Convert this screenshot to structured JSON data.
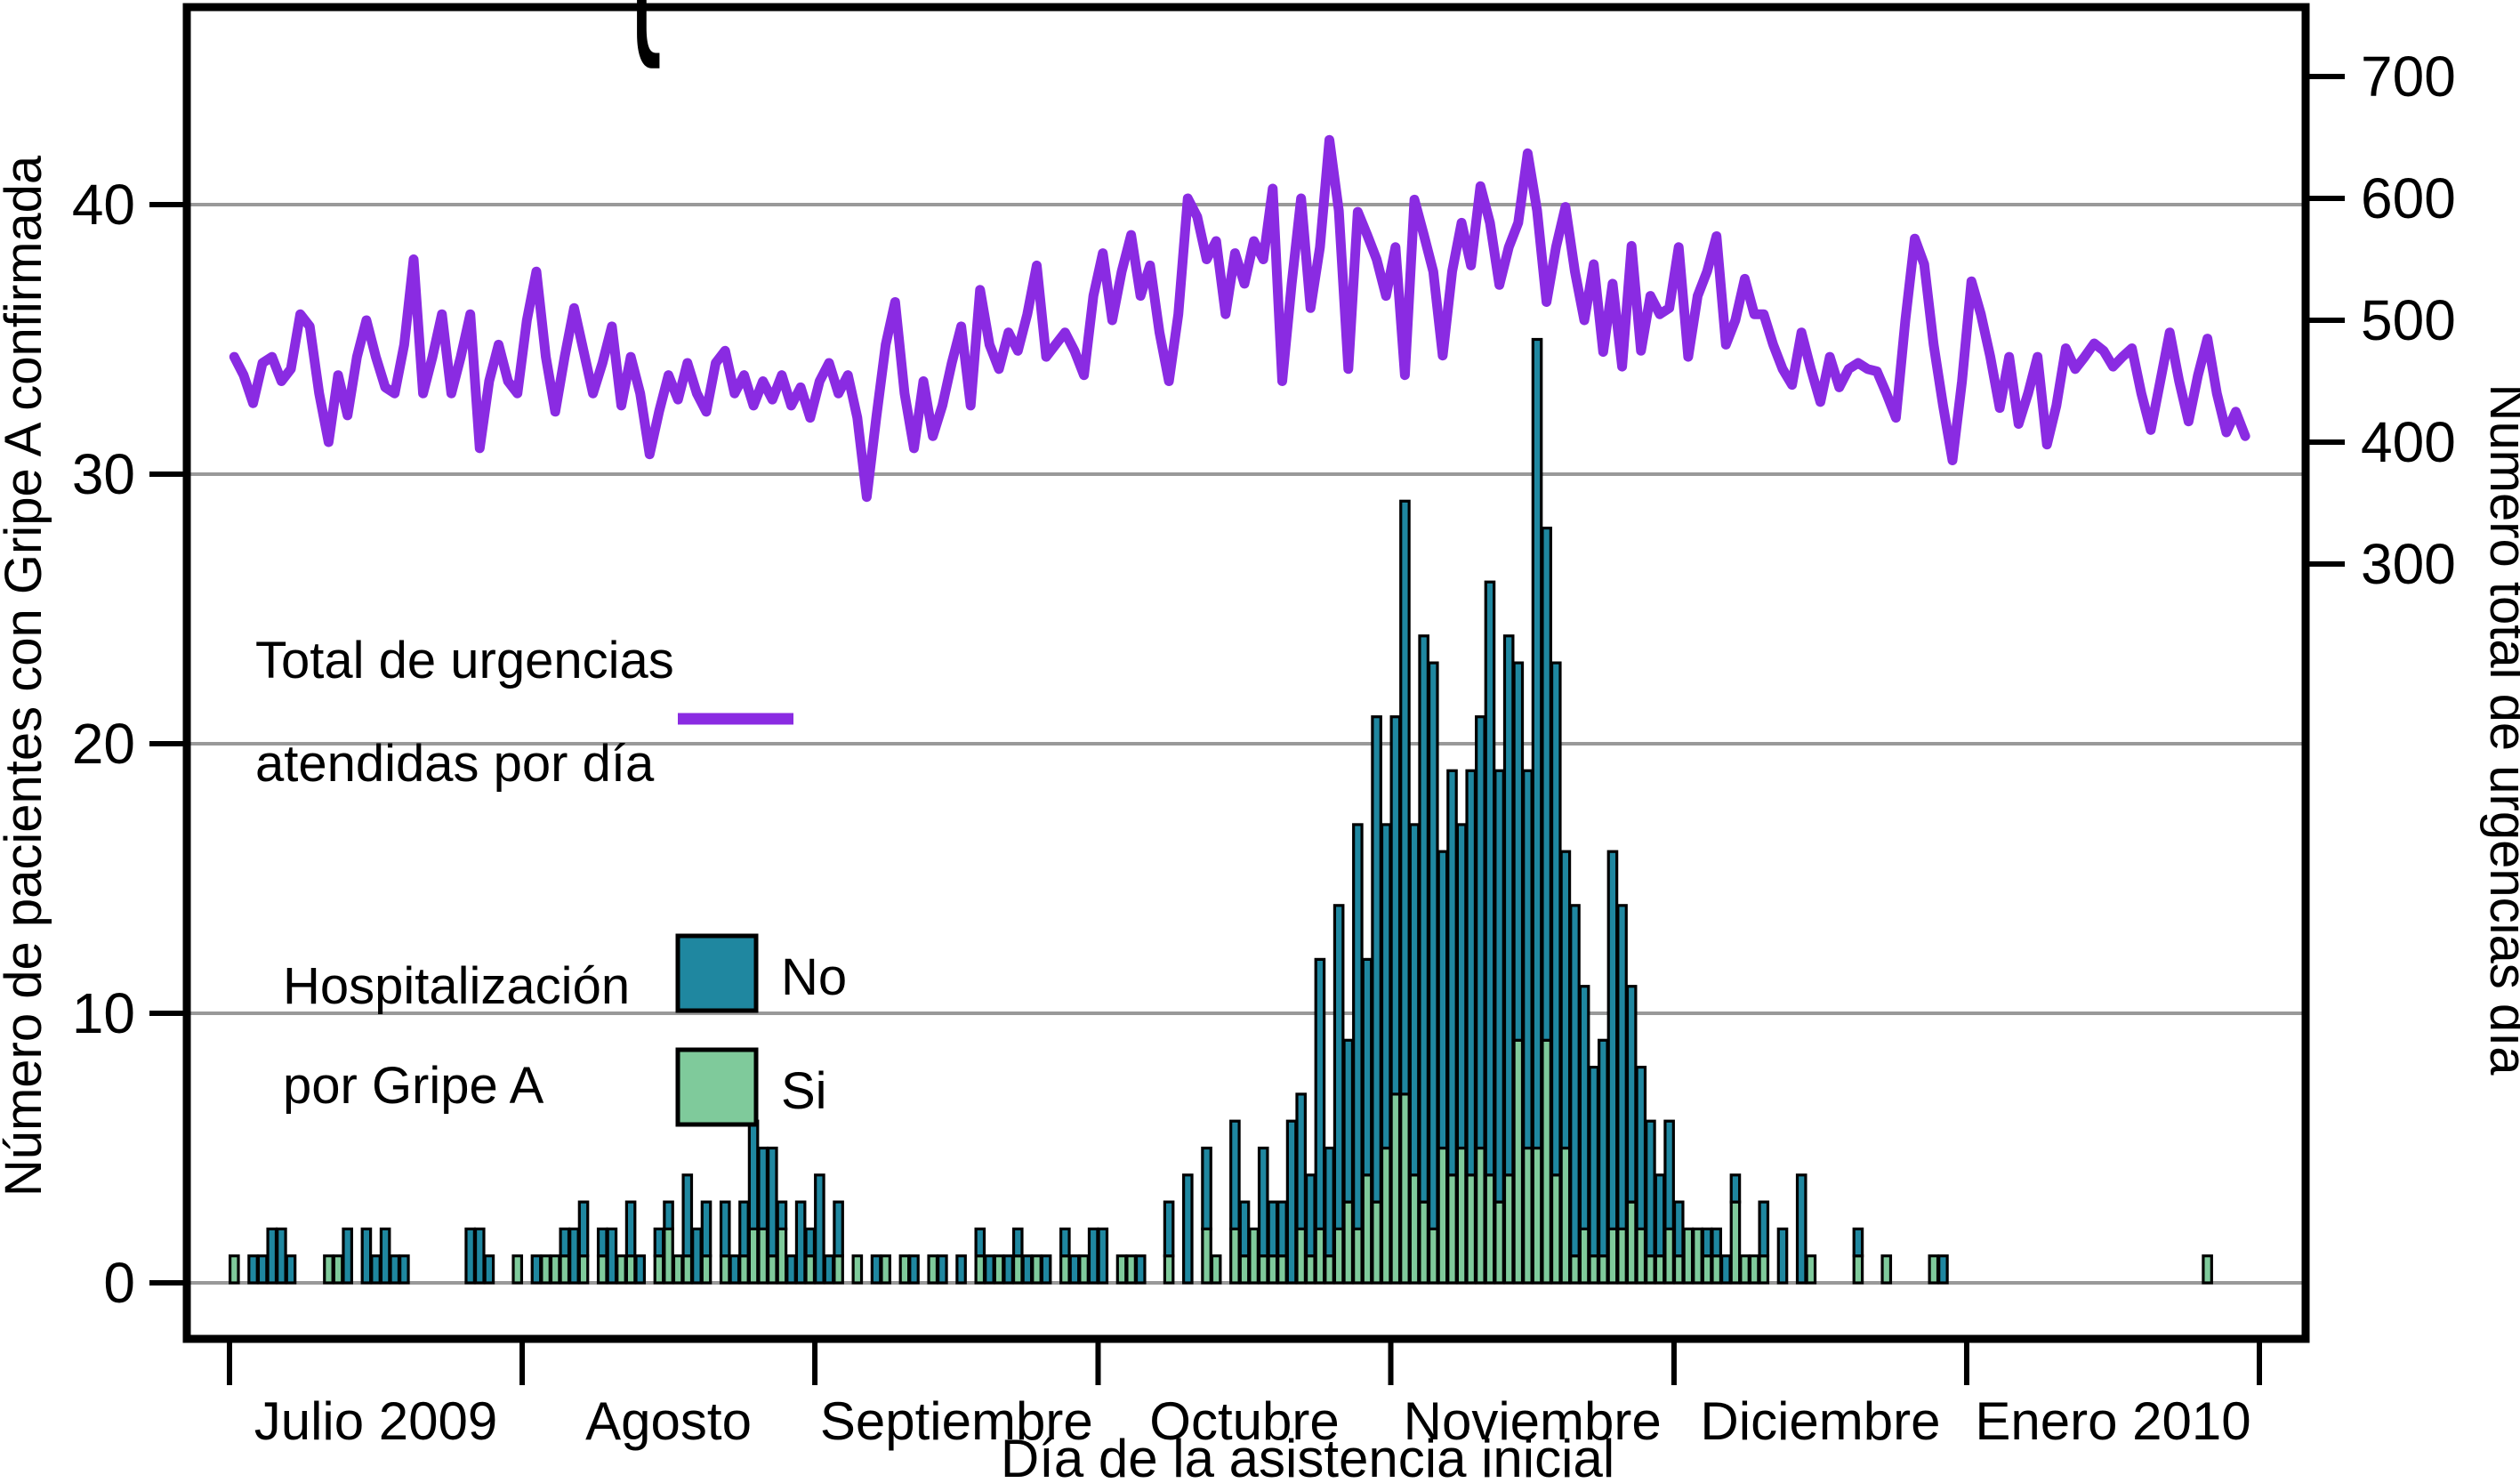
{
  "chart_data": {
    "type": "composite-bar-line",
    "x_axis": {
      "label": "Día de la asistencia inicial",
      "months": [
        {
          "label": "Julio 2009",
          "days": 31
        },
        {
          "label": "Agosto",
          "days": 31
        },
        {
          "label": "Septiembre",
          "days": 30
        },
        {
          "label": "Octubre",
          "days": 31
        },
        {
          "label": "Noviembre",
          "days": 30
        },
        {
          "label": "Diciembre",
          "days": 31
        },
        {
          "label": "Enero 2010",
          "days": 31
        }
      ]
    },
    "y_left": {
      "label": "Número de pacientes con Gripe A confirmada",
      "ticks": [
        0,
        10,
        20,
        30,
        40
      ],
      "range": [
        0,
        48
      ]
    },
    "y_right": {
      "label": "Número total de urgencias día",
      "ticks": [
        300,
        400,
        500,
        600,
        700
      ]
    },
    "legend": {
      "line_label_1": "Total de urgencias",
      "line_label_2": "atendidas por día",
      "bars_label_1": "Hospitalización",
      "bars_label_2": "por Gripe A",
      "no_label": "No",
      "si_label": "Si",
      "brace": "{"
    },
    "colors": {
      "no_bar": "#1f87a0",
      "si_bar": "#7fca9b",
      "line": "#8a2be2",
      "grid": "#999999",
      "axis": "#000000",
      "bar_outline": "#000000"
    },
    "series": {
      "si": [
        1,
        0,
        0,
        0,
        0,
        0,
        0,
        0,
        0,
        0,
        1,
        1,
        0,
        0,
        0,
        0,
        0,
        0,
        0,
        0,
        0,
        0,
        0,
        0,
        0,
        0,
        0,
        0,
        0,
        0,
        1,
        0,
        0,
        1,
        1,
        1,
        0,
        1,
        0,
        1,
        0,
        1,
        1,
        0,
        0,
        1,
        2,
        1,
        1,
        0,
        1,
        0,
        1,
        0,
        1,
        2,
        2,
        1,
        2,
        0,
        0,
        1,
        0,
        0,
        1,
        0,
        1,
        0,
        0,
        1,
        0,
        1,
        0,
        0,
        1,
        0,
        0,
        0,
        0,
        1,
        0,
        1,
        0,
        1,
        0,
        1,
        0,
        0,
        1,
        0,
        1,
        0,
        0,
        0,
        1,
        1,
        0,
        0,
        0,
        1,
        0,
        0,
        0,
        2,
        1,
        0,
        2,
        1,
        2,
        1,
        1,
        1,
        0,
        2,
        1,
        2,
        1,
        2,
        3,
        2,
        4,
        3,
        5,
        7,
        7,
        4,
        3,
        2,
        5,
        4,
        5,
        4,
        5,
        4,
        3,
        4,
        9,
        5,
        5,
        9,
        4,
        5,
        1,
        2,
        1,
        1,
        2,
        2,
        3,
        2,
        1,
        1,
        2,
        1,
        2,
        2,
        1,
        1,
        0,
        3,
        1,
        1,
        1,
        0,
        0,
        0,
        0,
        1,
        0,
        0,
        0,
        0,
        1,
        0,
        0,
        1,
        0,
        0,
        0,
        0,
        1,
        0,
        0,
        0,
        0,
        0,
        0,
        0,
        0,
        0,
        0,
        0,
        0,
        0,
        0,
        0,
        0,
        0,
        0,
        0,
        0,
        0,
        0,
        0,
        0,
        0,
        0,
        0,
        0,
        1,
        0,
        0,
        0,
        0
      ],
      "no": [
        0,
        0,
        1,
        1,
        2,
        2,
        1,
        0,
        0,
        0,
        0,
        0,
        2,
        0,
        2,
        1,
        2,
        1,
        1,
        0,
        0,
        0,
        0,
        0,
        0,
        2,
        2,
        1,
        0,
        0,
        0,
        0,
        1,
        0,
        0,
        1,
        2,
        2,
        0,
        1,
        2,
        0,
        2,
        1,
        0,
        1,
        1,
        0,
        3,
        2,
        2,
        0,
        2,
        1,
        2,
        4,
        3,
        4,
        1,
        1,
        3,
        1,
        4,
        1,
        2,
        0,
        0,
        0,
        1,
        0,
        0,
        0,
        1,
        0,
        0,
        1,
        0,
        1,
        0,
        1,
        1,
        0,
        1,
        1,
        1,
        0,
        1,
        0,
        1,
        1,
        0,
        2,
        2,
        0,
        0,
        0,
        1,
        0,
        0,
        2,
        0,
        4,
        0,
        3,
        0,
        0,
        4,
        2,
        0,
        4,
        2,
        2,
        6,
        5,
        3,
        10,
        4,
        12,
        6,
        15,
        8,
        18,
        12,
        14,
        22,
        13,
        21,
        21,
        11,
        15,
        12,
        15,
        16,
        22,
        16,
        20,
        14,
        14,
        30,
        19,
        19,
        11,
        13,
        9,
        7,
        8,
        14,
        12,
        8,
        6,
        5,
        3,
        4,
        2,
        0,
        0,
        1,
        1,
        1,
        1,
        0,
        0,
        2,
        0,
        2,
        0,
        4,
        0,
        0,
        0,
        0,
        0,
        1,
        0,
        0,
        0,
        0,
        0,
        0,
        0,
        0,
        1,
        0,
        0,
        0,
        0,
        0,
        0,
        0,
        0,
        0,
        0,
        0,
        0,
        0,
        0,
        0,
        0,
        0,
        0,
        0,
        0,
        0,
        0,
        0,
        0,
        0,
        0,
        0,
        0,
        0,
        0,
        0,
        0
      ],
      "urgencias": [
        470,
        455,
        432,
        465,
        470,
        450,
        460,
        505,
        495,
        440,
        400,
        455,
        422,
        470,
        500,
        470,
        445,
        440,
        480,
        550,
        440,
        470,
        505,
        440,
        470,
        505,
        395,
        450,
        480,
        450,
        440,
        500,
        540,
        470,
        425,
        470,
        510,
        475,
        440,
        465,
        495,
        430,
        470,
        440,
        390,
        425,
        455,
        435,
        465,
        440,
        425,
        465,
        475,
        440,
        455,
        430,
        450,
        435,
        455,
        430,
        445,
        420,
        450,
        465,
        440,
        455,
        420,
        355,
        420,
        480,
        515,
        440,
        395,
        450,
        405,
        430,
        465,
        495,
        430,
        525,
        480,
        460,
        490,
        475,
        505,
        545,
        470,
        480,
        490,
        475,
        455,
        520,
        555,
        500,
        540,
        570,
        520,
        545,
        490,
        450,
        505,
        600,
        585,
        550,
        565,
        505,
        555,
        530,
        565,
        550,
        608,
        450,
        530,
        600,
        510,
        560,
        648,
        590,
        460,
        589,
        570,
        550,
        520,
        560,
        455,
        599,
        570,
        540,
        471,
        540,
        580,
        545,
        610,
        580,
        529,
        560,
        580,
        637,
        590,
        515,
        560,
        593,
        540,
        500,
        546,
        474,
        530,
        462,
        561,
        475,
        520,
        505,
        510,
        560,
        470,
        520,
        540,
        569,
        480,
        500,
        534,
        505,
        505,
        480,
        460,
        447,
        490,
        460,
        433,
        470,
        445,
        460,
        465,
        460,
        458,
        440,
        420,
        500,
        567,
        546,
        480,
        430,
        385,
        450,
        532,
        505,
        470,
        428,
        470,
        415,
        440,
        470,
        398,
        430,
        477,
        460,
        470,
        481,
        475,
        462,
        470,
        477,
        440,
        410,
        450,
        490,
        450,
        417,
        455,
        485,
        440,
        408,
        425,
        405
      ]
    }
  }
}
